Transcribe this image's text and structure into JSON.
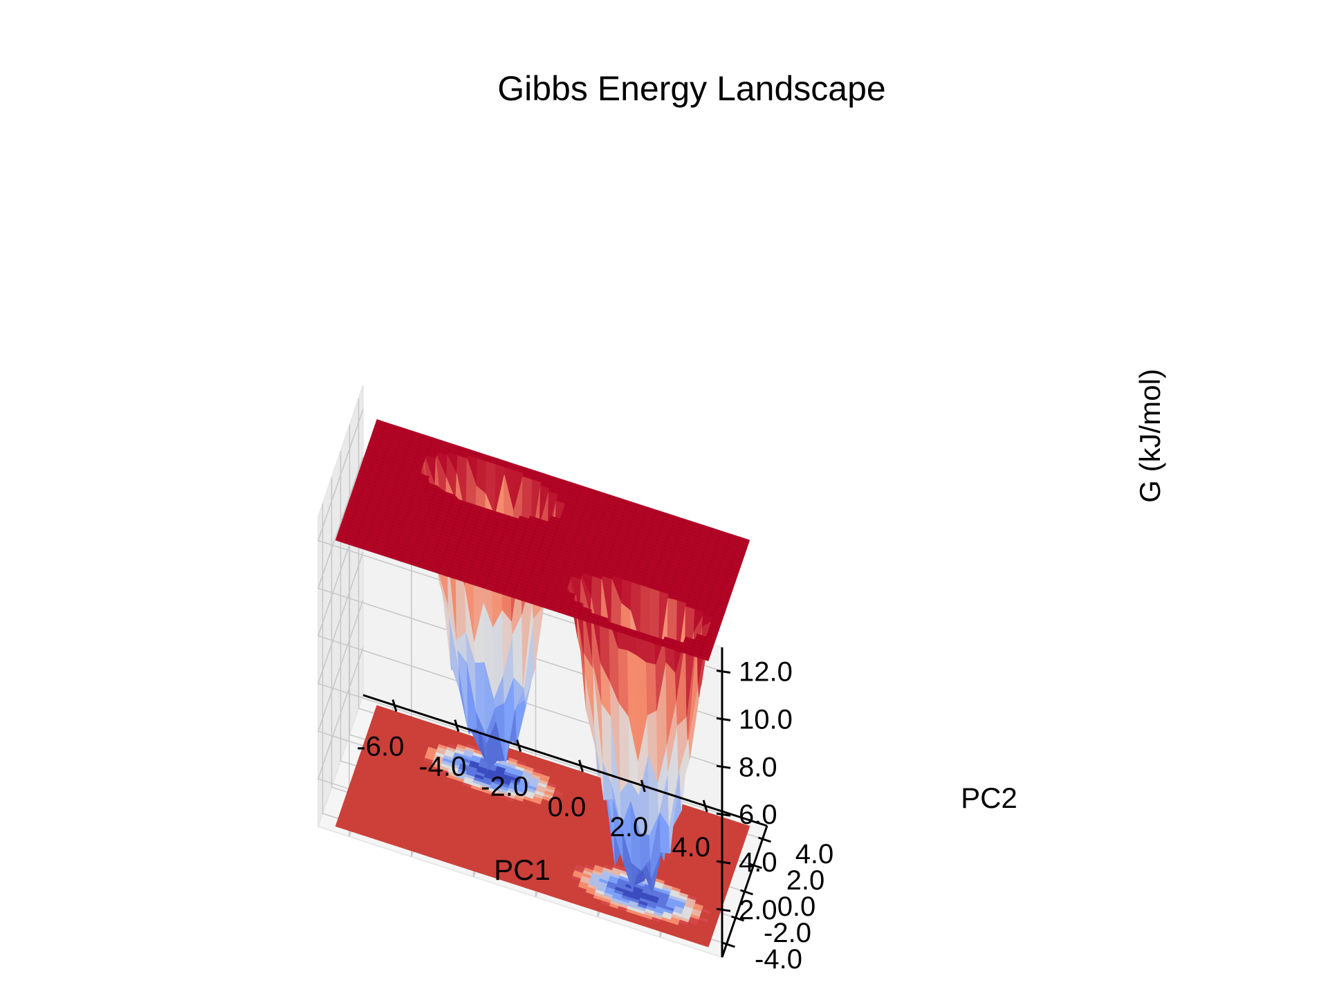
{
  "chart_data": {
    "type": "surface3d",
    "title": "Gibbs Energy Landscape",
    "xlabel": "PC1",
    "ylabel": "PC2",
    "zlabel": "G (kJ/mol)",
    "x_ticks": [
      "-6.0",
      "-4.0",
      "-2.0",
      "0.0",
      "2.0",
      "4.0"
    ],
    "y_ticks": [
      "-4.0",
      "-2.0",
      "0.0",
      "2.0",
      "4.0"
    ],
    "z_ticks": [
      "2.0",
      "4.0",
      "6.0",
      "8.0",
      "10.0",
      "12.0"
    ],
    "xlim": [
      -7,
      6
    ],
    "ylim": [
      -5,
      5
    ],
    "zlim": [
      0,
      13
    ],
    "z_cap": 12.0,
    "colormap": "coolwarm",
    "colors": {
      "low": "#3b4cc0",
      "mid": "#dddddd",
      "high": "#b40426"
    },
    "minima": [
      {
        "pc1": -2.5,
        "pc2": 2.5,
        "g_min": 0.5
      },
      {
        "pc1": 3.0,
        "pc2": -2.5,
        "g_min": 0.5
      }
    ],
    "contour_projection": {
      "surface": "base-plane",
      "levels": 8
    }
  }
}
